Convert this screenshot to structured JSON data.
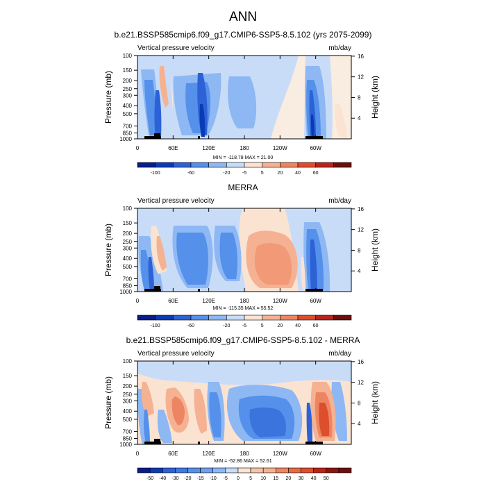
{
  "page": {
    "title": "ANN"
  },
  "colors": {
    "scale11": [
      "#081d8a",
      "#0b3bb3",
      "#2c62d6",
      "#5590ea",
      "#8eb8f4",
      "#c8dcf8",
      "#fbe3d2",
      "#f5b293",
      "#ee8562",
      "#dd4e2d",
      "#b8231a",
      "#6c0f0c"
    ],
    "scale16": [
      "#081d8a",
      "#0b3bb3",
      "#2c62d6",
      "#3f79e2",
      "#5590ea",
      "#729fee",
      "#8eb8f4",
      "#c8dcf8",
      "#fbe3d2",
      "#f5c4a8",
      "#f5b293",
      "#ee8562",
      "#e86a45",
      "#dd4e2d",
      "#b8231a",
      "#8a150f",
      "#6c0f0c"
    ]
  },
  "panels": [
    {
      "id": "model",
      "title": "b.e21.BSSP585cmip6.f09_g17.CMIP6-SSP5-8.5.102 (yrs 2075-2099)",
      "left_label": "Vertical pressure velocity",
      "right_label": "mb/day",
      "minmax": "MIN = -118.78  MAX = 21.00",
      "colorbar_labels": [
        "-100",
        "-60",
        "-20",
        "-5",
        "5",
        "20",
        "40",
        "60"
      ]
    },
    {
      "id": "obs",
      "title": "MERRA",
      "left_label": "Vertical pressure velocity",
      "right_label": "mb/day",
      "minmax": "MIN = -115.35  MAX = 55.52",
      "colorbar_labels": [
        "-100",
        "-60",
        "-20",
        "-5",
        "5",
        "20",
        "40",
        "60"
      ]
    },
    {
      "id": "diff",
      "title": "b.e21.BSSP585cmip6.f09_g17.CMIP6-SSP5-8.5.102 - MERRA",
      "left_label": "Vertical pressure velocity",
      "right_label": "mb/day",
      "minmax": "MIN = -52.86  MAX = 52.61",
      "colorbar_labels": [
        "-50",
        "-40",
        "-30",
        "-20",
        "-15",
        "-10",
        "-5",
        "0",
        "5",
        "10",
        "15",
        "20",
        "30",
        "40",
        "50"
      ]
    }
  ],
  "chart_data": [
    {
      "type": "heatmap",
      "title": "b.e21.BSSP585cmip6.f09_g17.CMIP6-SSP5-8.5.102 (yrs 2075-2099)",
      "ylabel": "Pressure (mb)",
      "y2label": "Height (km)",
      "x_ticks": [
        "0",
        "60E",
        "120E",
        "180",
        "120W",
        "60W"
      ],
      "y_ticks": [
        "100",
        "150",
        "200",
        "250",
        "300",
        "400",
        "500",
        "700",
        "850",
        "1000"
      ],
      "y2_ticks": [
        "4",
        "8",
        "12",
        "16"
      ],
      "colorbar": [
        -100,
        -60,
        -20,
        -5,
        5,
        20,
        40,
        60
      ],
      "min": -118.78,
      "max": 21.0
    },
    {
      "type": "heatmap",
      "title": "MERRA",
      "ylabel": "Pressure (mb)",
      "y2label": "Height (km)",
      "x_ticks": [
        "0",
        "60E",
        "120E",
        "180",
        "120W",
        "60W"
      ],
      "y_ticks": [
        "100",
        "150",
        "200",
        "250",
        "300",
        "400",
        "500",
        "700",
        "850",
        "1000"
      ],
      "y2_ticks": [
        "4",
        "8",
        "12",
        "16"
      ],
      "colorbar": [
        -100,
        -60,
        -20,
        -5,
        5,
        20,
        40,
        60
      ],
      "min": -115.35,
      "max": 55.52
    },
    {
      "type": "heatmap",
      "title": "b.e21.BSSP585cmip6.f09_g17.CMIP6-SSP5-8.5.102 - MERRA",
      "ylabel": "Pressure (mb)",
      "y2label": "Height (km)",
      "x_ticks": [
        "0",
        "60E",
        "120E",
        "180",
        "120W",
        "60W"
      ],
      "y_ticks": [
        "100",
        "150",
        "200",
        "250",
        "300",
        "400",
        "500",
        "700",
        "850",
        "1000"
      ],
      "y2_ticks": [
        "4",
        "8",
        "12",
        "16"
      ],
      "colorbar": [
        -50,
        -40,
        -30,
        -20,
        -15,
        -10,
        -5,
        0,
        5,
        10,
        15,
        20,
        30,
        40,
        50
      ],
      "min": -52.86,
      "max": 52.61
    }
  ]
}
